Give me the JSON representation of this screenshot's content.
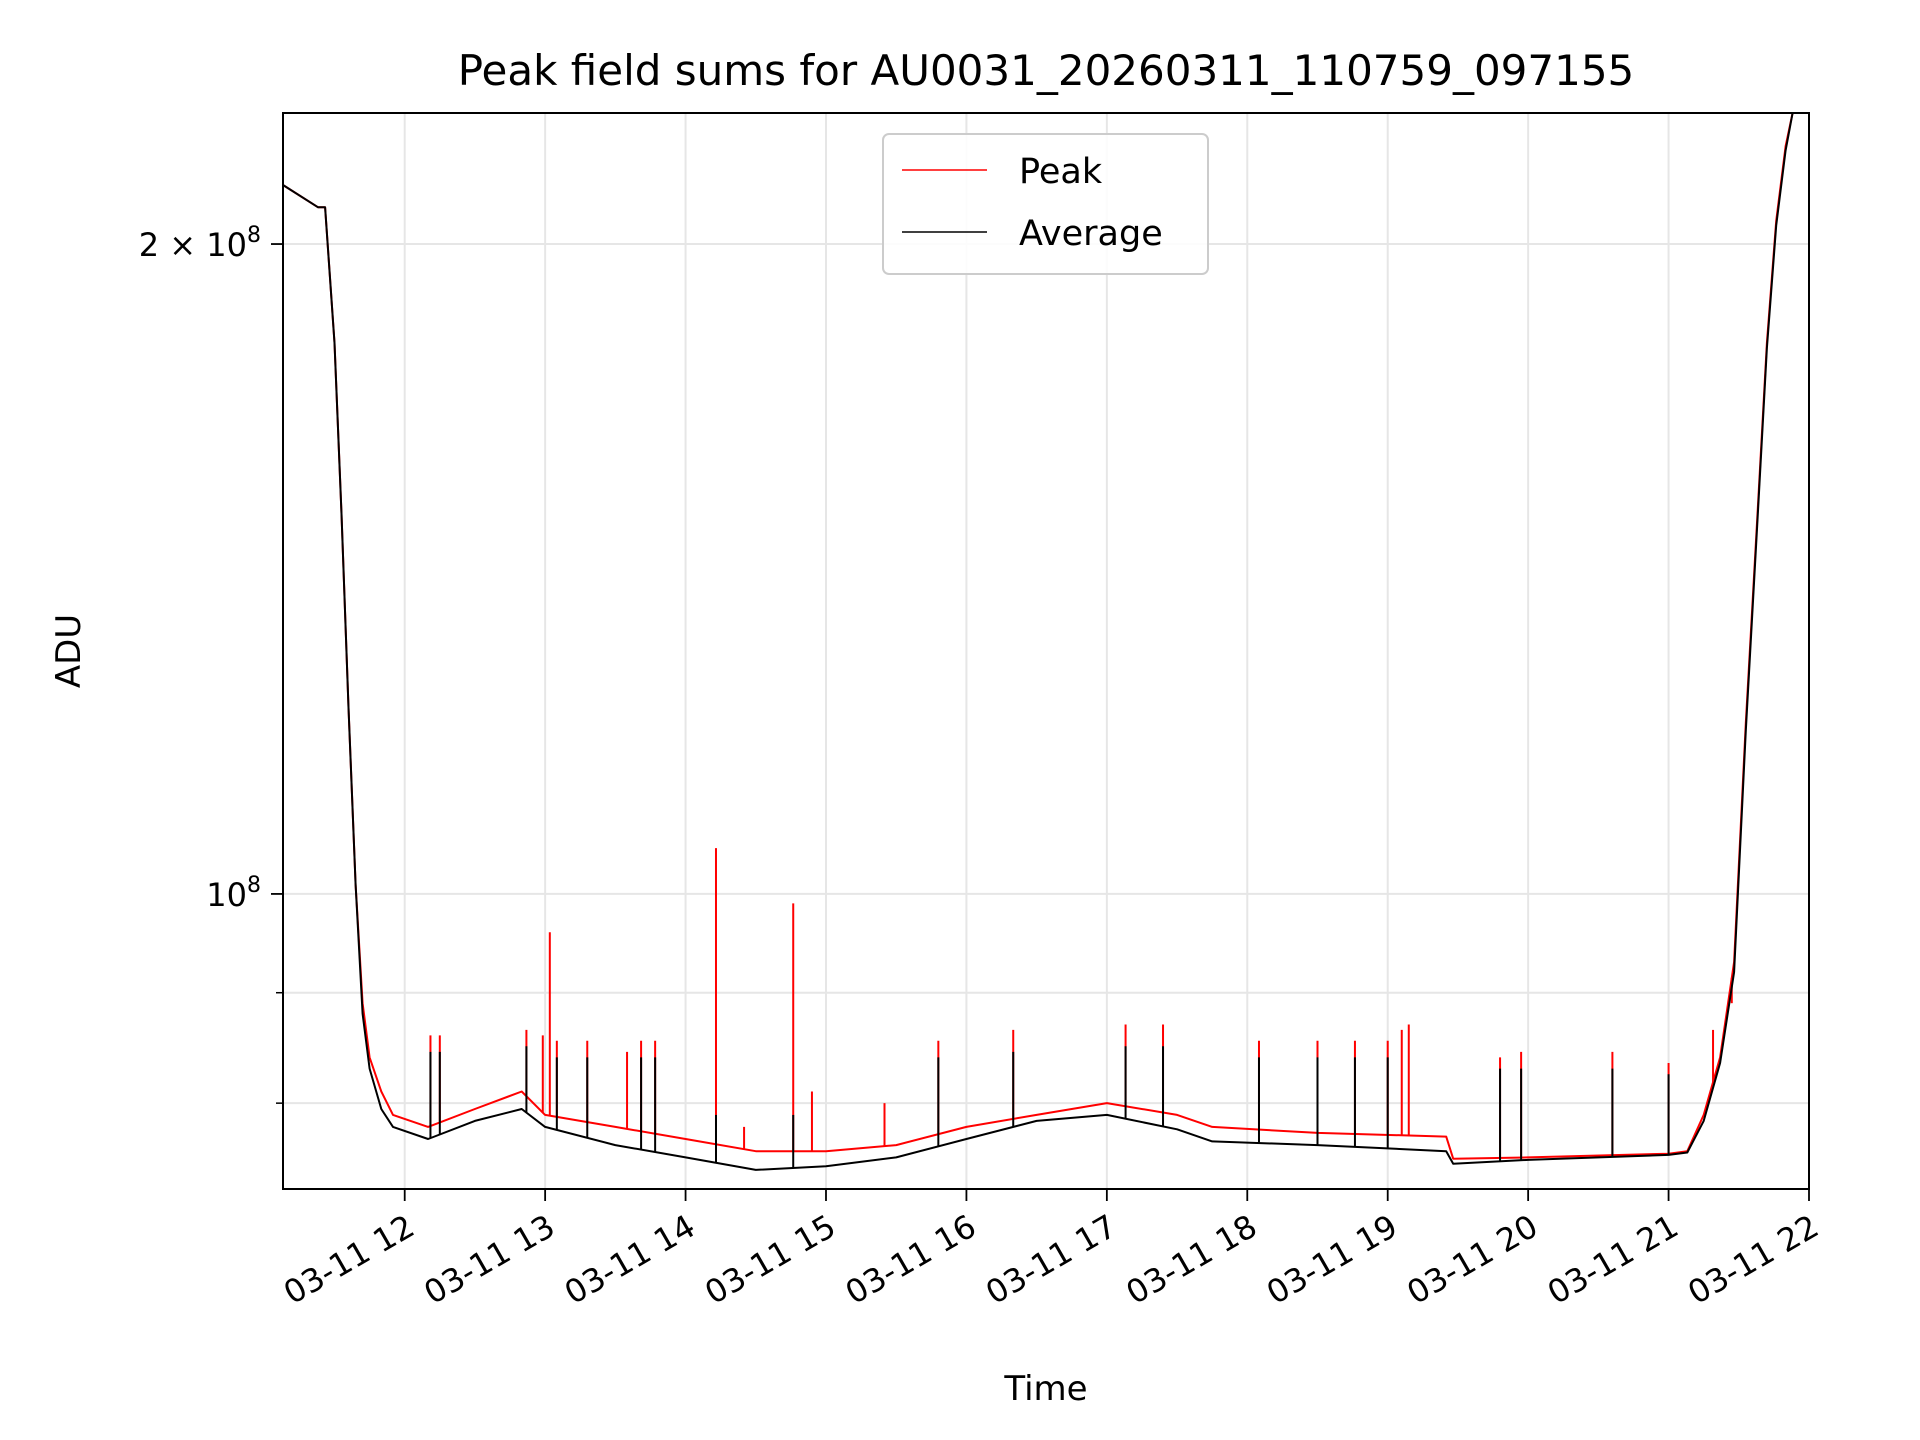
{
  "chart_data": {
    "type": "line",
    "title": "Peak field sums for AU0031_20260311_110759_097155",
    "xlabel": "Time",
    "ylabel": "ADU",
    "yscale": "log",
    "grid": true,
    "legend_position": "upper center",
    "xlim": [
      "2026-03-11T11:08",
      "2026-03-11T22:00"
    ],
    "ylim": [
      73000000,
      230000000
    ],
    "x_ticks": [
      "2026-03-11T12:00",
      "2026-03-11T13:00",
      "2026-03-11T14:00",
      "2026-03-11T15:00",
      "2026-03-11T16:00",
      "2026-03-11T17:00",
      "2026-03-11T18:00",
      "2026-03-11T19:00",
      "2026-03-11T20:00",
      "2026-03-11T21:00",
      "2026-03-11T22:00"
    ],
    "x_tick_labels": [
      "03-11 12",
      "03-11 13",
      "03-11 14",
      "03-11 15",
      "03-11 16",
      "03-11 17",
      "03-11 18",
      "03-11 19",
      "03-11 20",
      "03-11 21",
      "03-11 22"
    ],
    "y_ticks": [
      {
        "value": 200000000,
        "label_base": "2 × 10",
        "label_exp": "8"
      },
      {
        "value": 100000000,
        "label_base": "10",
        "label_exp": "8"
      }
    ],
    "series": [
      {
        "name": "Peak",
        "color": "#ff0000",
        "x": [
          "2026-03-11T11:08",
          "2026-03-11T11:23",
          "2026-03-11T11:26",
          "2026-03-11T11:30",
          "2026-03-11T11:33",
          "2026-03-11T11:36",
          "2026-03-11T11:39",
          "2026-03-11T11:42",
          "2026-03-11T11:45",
          "2026-03-11T11:50",
          "2026-03-11T11:55",
          "2026-03-11T12:10",
          "2026-03-11T12:30",
          "2026-03-11T12:50",
          "2026-03-11T13:00",
          "2026-03-11T13:30",
          "2026-03-11T14:00",
          "2026-03-11T14:30",
          "2026-03-11T15:00",
          "2026-03-11T15:30",
          "2026-03-11T16:00",
          "2026-03-11T16:30",
          "2026-03-11T17:00",
          "2026-03-11T17:30",
          "2026-03-11T17:45",
          "2026-03-11T18:30",
          "2026-03-11T19:25",
          "2026-03-11T19:28",
          "2026-03-11T20:00",
          "2026-03-11T21:00",
          "2026-03-11T21:08",
          "2026-03-11T21:15",
          "2026-03-11T21:22",
          "2026-03-11T21:28",
          "2026-03-11T21:33",
          "2026-03-11T21:38",
          "2026-03-11T21:42",
          "2026-03-11T21:46",
          "2026-03-11T21:50",
          "2026-03-11T21:53"
        ],
        "y": [
          213000000,
          208000000,
          208000000,
          180000000,
          150000000,
          122000000,
          101000000,
          89000000,
          84000000,
          81000000,
          79000000,
          78000000,
          79500000,
          81000000,
          79000000,
          78000000,
          77000000,
          76000000,
          76000000,
          76500000,
          78000000,
          79000000,
          80000000,
          79000000,
          78000000,
          77500000,
          77200000,
          75400000,
          75500000,
          75800000,
          76000000,
          79000000,
          84000000,
          93000000,
          120000000,
          150000000,
          180000000,
          205000000,
          222000000,
          230000000
        ],
        "spikes": [
          {
            "x": "2026-03-11T12:11",
            "y": 86000000
          },
          {
            "x": "2026-03-11T12:15",
            "y": 86000000
          },
          {
            "x": "2026-03-11T12:52",
            "y": 86500000
          },
          {
            "x": "2026-03-11T12:59",
            "y": 86000000
          },
          {
            "x": "2026-03-11T13:02",
            "y": 96000000
          },
          {
            "x": "2026-03-11T13:05",
            "y": 85500000
          },
          {
            "x": "2026-03-11T13:18",
            "y": 85500000
          },
          {
            "x": "2026-03-11T13:35",
            "y": 84500000
          },
          {
            "x": "2026-03-11T13:41",
            "y": 85500000
          },
          {
            "x": "2026-03-11T13:47",
            "y": 85500000
          },
          {
            "x": "2026-03-11T14:13",
            "y": 105000000
          },
          {
            "x": "2026-03-11T14:25",
            "y": 78000000
          },
          {
            "x": "2026-03-11T14:46",
            "y": 99000000
          },
          {
            "x": "2026-03-11T14:54",
            "y": 81000000
          },
          {
            "x": "2026-03-11T15:25",
            "y": 80000000
          },
          {
            "x": "2026-03-11T15:48",
            "y": 85500000
          },
          {
            "x": "2026-03-11T16:20",
            "y": 86500000
          },
          {
            "x": "2026-03-11T17:08",
            "y": 87000000
          },
          {
            "x": "2026-03-11T17:24",
            "y": 87000000
          },
          {
            "x": "2026-03-11T18:05",
            "y": 85500000
          },
          {
            "x": "2026-03-11T18:30",
            "y": 85500000
          },
          {
            "x": "2026-03-11T18:46",
            "y": 85500000
          },
          {
            "x": "2026-03-11T19:00",
            "y": 85500000
          },
          {
            "x": "2026-03-11T19:06",
            "y": 86500000
          },
          {
            "x": "2026-03-11T19:09",
            "y": 87000000
          },
          {
            "x": "2026-03-11T19:48",
            "y": 84000000
          },
          {
            "x": "2026-03-11T19:57",
            "y": 84500000
          },
          {
            "x": "2026-03-11T20:36",
            "y": 84500000
          },
          {
            "x": "2026-03-11T21:00",
            "y": 83500000
          },
          {
            "x": "2026-03-11T21:19",
            "y": 86500000
          },
          {
            "x": "2026-03-11T21:27",
            "y": 89000000
          }
        ]
      },
      {
        "name": "Average",
        "color": "#000000",
        "x": [
          "2026-03-11T11:08",
          "2026-03-11T11:23",
          "2026-03-11T11:26",
          "2026-03-11T11:30",
          "2026-03-11T11:33",
          "2026-03-11T11:36",
          "2026-03-11T11:39",
          "2026-03-11T11:42",
          "2026-03-11T11:45",
          "2026-03-11T11:50",
          "2026-03-11T11:55",
          "2026-03-11T12:10",
          "2026-03-11T12:30",
          "2026-03-11T12:50",
          "2026-03-11T13:00",
          "2026-03-11T13:30",
          "2026-03-11T14:00",
          "2026-03-11T14:30",
          "2026-03-11T15:00",
          "2026-03-11T15:30",
          "2026-03-11T16:00",
          "2026-03-11T16:30",
          "2026-03-11T17:00",
          "2026-03-11T17:30",
          "2026-03-11T17:45",
          "2026-03-11T18:30",
          "2026-03-11T19:25",
          "2026-03-11T19:28",
          "2026-03-11T20:00",
          "2026-03-11T21:00",
          "2026-03-11T21:08",
          "2026-03-11T21:15",
          "2026-03-11T21:22",
          "2026-03-11T21:28",
          "2026-03-11T21:33",
          "2026-03-11T21:38",
          "2026-03-11T21:42",
          "2026-03-11T21:46",
          "2026-03-11T21:50",
          "2026-03-11T21:53"
        ],
        "y": [
          213000000,
          208000000,
          208000000,
          180000000,
          150000000,
          122000000,
          101000000,
          88000000,
          83000000,
          79500000,
          78000000,
          77000000,
          78500000,
          79500000,
          78000000,
          76500000,
          75500000,
          74500000,
          74800000,
          75500000,
          77000000,
          78500000,
          79000000,
          77800000,
          76800000,
          76500000,
          76000000,
          75000000,
          75300000,
          75700000,
          75900000,
          78500000,
          83500000,
          92000000,
          119000000,
          149000000,
          179000000,
          204000000,
          221000000,
          230000000
        ],
        "spikes": [
          {
            "x": "2026-03-11T12:11",
            "y": 84500000
          },
          {
            "x": "2026-03-11T12:15",
            "y": 84500000
          },
          {
            "x": "2026-03-11T12:52",
            "y": 85000000
          },
          {
            "x": "2026-03-11T13:05",
            "y": 84000000
          },
          {
            "x": "2026-03-11T13:18",
            "y": 84000000
          },
          {
            "x": "2026-03-11T13:41",
            "y": 84000000
          },
          {
            "x": "2026-03-11T13:47",
            "y": 84000000
          },
          {
            "x": "2026-03-11T14:13",
            "y": 79000000
          },
          {
            "x": "2026-03-11T14:46",
            "y": 79000000
          },
          {
            "x": "2026-03-11T15:48",
            "y": 84000000
          },
          {
            "x": "2026-03-11T16:20",
            "y": 84500000
          },
          {
            "x": "2026-03-11T17:08",
            "y": 85000000
          },
          {
            "x": "2026-03-11T17:24",
            "y": 85000000
          },
          {
            "x": "2026-03-11T18:05",
            "y": 84000000
          },
          {
            "x": "2026-03-11T18:30",
            "y": 84000000
          },
          {
            "x": "2026-03-11T18:46",
            "y": 84000000
          },
          {
            "x": "2026-03-11T19:00",
            "y": 84000000
          },
          {
            "x": "2026-03-11T19:48",
            "y": 83000000
          },
          {
            "x": "2026-03-11T19:57",
            "y": 83000000
          },
          {
            "x": "2026-03-11T20:36",
            "y": 83000000
          },
          {
            "x": "2026-03-11T21:00",
            "y": 82500000
          }
        ]
      }
    ]
  }
}
